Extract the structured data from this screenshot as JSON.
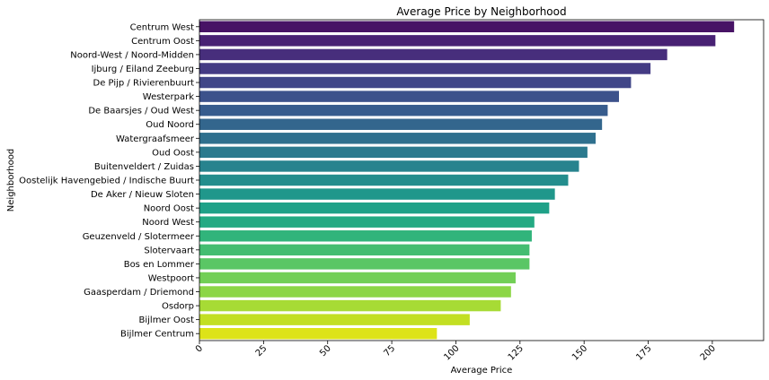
{
  "chart_data": {
    "type": "bar",
    "orientation": "horizontal",
    "title": "Average Price by Neighborhood",
    "xlabel": "Average Price",
    "ylabel": "Neighborhood",
    "xlim": [
      0,
      220
    ],
    "xticks": [
      0,
      25,
      50,
      75,
      100,
      125,
      150,
      175,
      200
    ],
    "xtick_rotation": 45,
    "grid": false,
    "legend": "none",
    "palette": "viridis",
    "categories": [
      "Centrum West",
      "Centrum Oost",
      "Noord-West / Noord-Midden",
      "Ijburg / Eiland Zeeburg",
      "De Pijp / Rivierenbuurt",
      "Westerpark",
      "De Baarsjes / Oud West",
      "Oud Noord",
      "Watergraafsmeer",
      "Oud Oost",
      "Buitenveldert / Zuidas",
      "Oostelijk Havengebied / Indische Buurt",
      "De Aker / Nieuw Sloten",
      "Noord Oost",
      "Noord West",
      "Geuzenveld / Slotermeer",
      "Slotervaart",
      "Bos en Lommer",
      "Westpoort",
      "Gaasperdam / Driemond",
      "Osdorp",
      "Bijlmer Oost",
      "Bijlmer Centrum"
    ],
    "values": [
      208.5,
      201.2,
      182.4,
      175.9,
      168.3,
      163.6,
      159.2,
      157.0,
      154.5,
      151.3,
      148.0,
      143.8,
      138.6,
      136.4,
      130.6,
      129.6,
      128.7,
      128.7,
      123.3,
      121.5,
      117.5,
      105.4,
      92.6
    ],
    "colors": [
      "#471365",
      "#482173",
      "#472e7c",
      "#443b84",
      "#404688",
      "#3c528b",
      "#375c8d",
      "#33668d",
      "#2f708e",
      "#2b7a8e",
      "#28838e",
      "#238d8d",
      "#20978b",
      "#1fa188",
      "#24aa83",
      "#31b47b",
      "#44bd71",
      "#5ac665",
      "#72cf56",
      "#8cd646",
      "#a7db35",
      "#c2df23",
      "#dde318"
    ]
  }
}
